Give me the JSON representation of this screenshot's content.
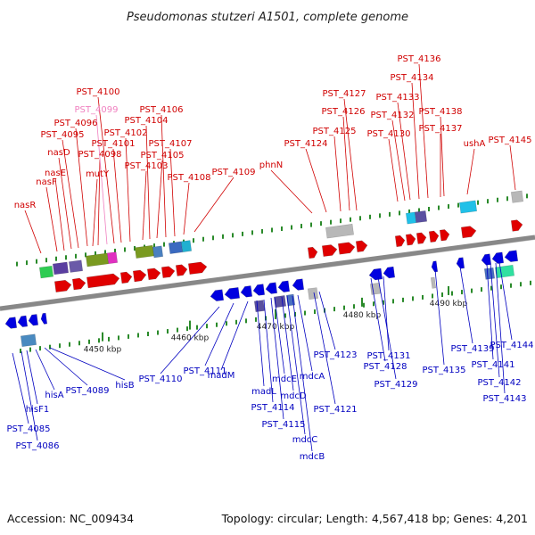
{
  "title": "Pseudomonas stutzeri A1501, complete genome",
  "footer": {
    "accession": "Accession: NC_009434",
    "summary": "Topology: circular; Length: 4,567,418 bp; Genes: 4,201"
  },
  "colors": {
    "forward": "#e00000",
    "reverse": "#0000e0",
    "label_forward": "#d00000",
    "label_reverse": "#0000c0",
    "label_pseudo": "#f080c0",
    "backbone": "#888888",
    "tick": "#2a8a2a"
  },
  "scale": {
    "ticks": [
      {
        "label": "4450 kbp"
      },
      {
        "label": "4460 kbp"
      },
      {
        "label": "4470 kbp"
      },
      {
        "label": "4480 kbp"
      },
      {
        "label": "4490 kbp"
      }
    ]
  },
  "upper_labels": [
    {
      "text": "nasR",
      "tone": "forward"
    },
    {
      "text": "nasF",
      "tone": "forward"
    },
    {
      "text": "nasE",
      "tone": "forward"
    },
    {
      "text": "nasD",
      "tone": "forward"
    },
    {
      "text": "PST_4095",
      "tone": "forward"
    },
    {
      "text": "PST_4096",
      "tone": "forward"
    },
    {
      "text": "mutY",
      "tone": "forward"
    },
    {
      "text": "PST_4098",
      "tone": "forward"
    },
    {
      "text": "PST_4099",
      "tone": "pseudo"
    },
    {
      "text": "PST_4100",
      "tone": "forward"
    },
    {
      "text": "PST_4101",
      "tone": "forward"
    },
    {
      "text": "PST_4102",
      "tone": "forward"
    },
    {
      "text": "PST_4103",
      "tone": "forward"
    },
    {
      "text": "PST_4104",
      "tone": "forward"
    },
    {
      "text": "PST_4105",
      "tone": "forward"
    },
    {
      "text": "PST_4106",
      "tone": "forward"
    },
    {
      "text": "PST_4107",
      "tone": "forward"
    },
    {
      "text": "PST_4108",
      "tone": "forward"
    },
    {
      "text": "PST_4109",
      "tone": "forward"
    },
    {
      "text": "phnN",
      "tone": "forward"
    },
    {
      "text": "PST_4124",
      "tone": "forward"
    },
    {
      "text": "PST_4125",
      "tone": "forward"
    },
    {
      "text": "PST_4126",
      "tone": "forward"
    },
    {
      "text": "PST_4127",
      "tone": "forward"
    },
    {
      "text": "PST_4130",
      "tone": "forward"
    },
    {
      "text": "PST_4132",
      "tone": "forward"
    },
    {
      "text": "PST_4133",
      "tone": "forward"
    },
    {
      "text": "PST_4134",
      "tone": "forward"
    },
    {
      "text": "PST_4136",
      "tone": "forward"
    },
    {
      "text": "PST_4137",
      "tone": "forward"
    },
    {
      "text": "PST_4138",
      "tone": "forward"
    },
    {
      "text": "ushA",
      "tone": "forward"
    },
    {
      "text": "PST_4145",
      "tone": "forward"
    }
  ],
  "lower_labels": [
    {
      "text": "PST_4085",
      "tone": "reverse"
    },
    {
      "text": "PST_4086",
      "tone": "reverse"
    },
    {
      "text": "hisF1",
      "tone": "reverse"
    },
    {
      "text": "hisA",
      "tone": "reverse"
    },
    {
      "text": "PST_4089",
      "tone": "reverse"
    },
    {
      "text": "hisB",
      "tone": "reverse"
    },
    {
      "text": "PST_4110",
      "tone": "reverse"
    },
    {
      "text": "PST_4111",
      "tone": "reverse"
    },
    {
      "text": "madM",
      "tone": "reverse"
    },
    {
      "text": "madL",
      "tone": "reverse"
    },
    {
      "text": "PST_4114",
      "tone": "reverse"
    },
    {
      "text": "PST_4115",
      "tone": "reverse"
    },
    {
      "text": "mdcE",
      "tone": "reverse"
    },
    {
      "text": "mdcD",
      "tone": "reverse"
    },
    {
      "text": "mdcC",
      "tone": "reverse"
    },
    {
      "text": "mdcB",
      "tone": "reverse"
    },
    {
      "text": "mdcA",
      "tone": "reverse"
    },
    {
      "text": "PST_4121",
      "tone": "reverse"
    },
    {
      "text": "PST_4123",
      "tone": "reverse"
    },
    {
      "text": "PST_4128",
      "tone": "reverse"
    },
    {
      "text": "PST_4129",
      "tone": "reverse"
    },
    {
      "text": "PST_4131",
      "tone": "reverse"
    },
    {
      "text": "PST_4135",
      "tone": "reverse"
    },
    {
      "text": "PST_4139",
      "tone": "reverse"
    },
    {
      "text": "PST_4141",
      "tone": "reverse"
    },
    {
      "text": "PST_4142",
      "tone": "reverse"
    },
    {
      "text": "PST_4143",
      "tone": "reverse"
    },
    {
      "text": "PST_4144",
      "tone": "reverse"
    }
  ]
}
